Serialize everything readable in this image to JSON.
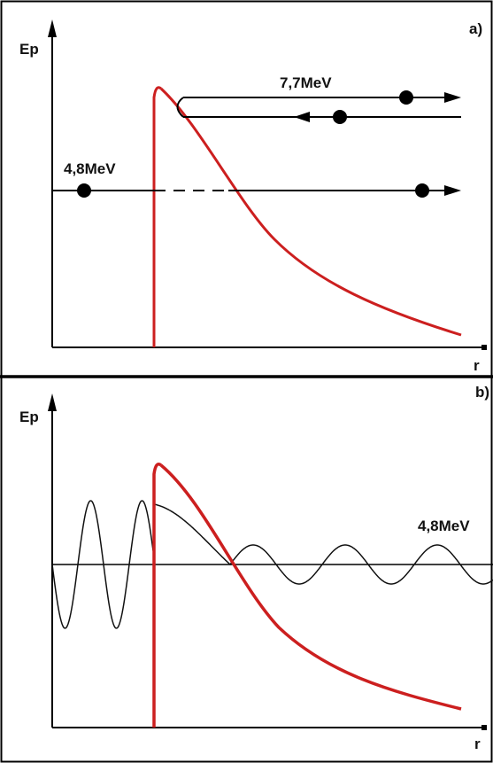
{
  "colors": {
    "frame": "#000000",
    "potential_curve": "#cc1f1f",
    "wave": "#111111",
    "trajectory": "#000000",
    "background": "#ffffff"
  },
  "panel_a": {
    "tag": "a)",
    "y_axis_label": "Ep",
    "x_axis_label": "r",
    "high_energy_label": "7,7MeV",
    "low_energy_label": "4,8MeV"
  },
  "panel_b": {
    "tag": "b)",
    "y_axis_label": "Ep",
    "x_axis_label": "r",
    "energy_label": "4,8MeV"
  }
}
